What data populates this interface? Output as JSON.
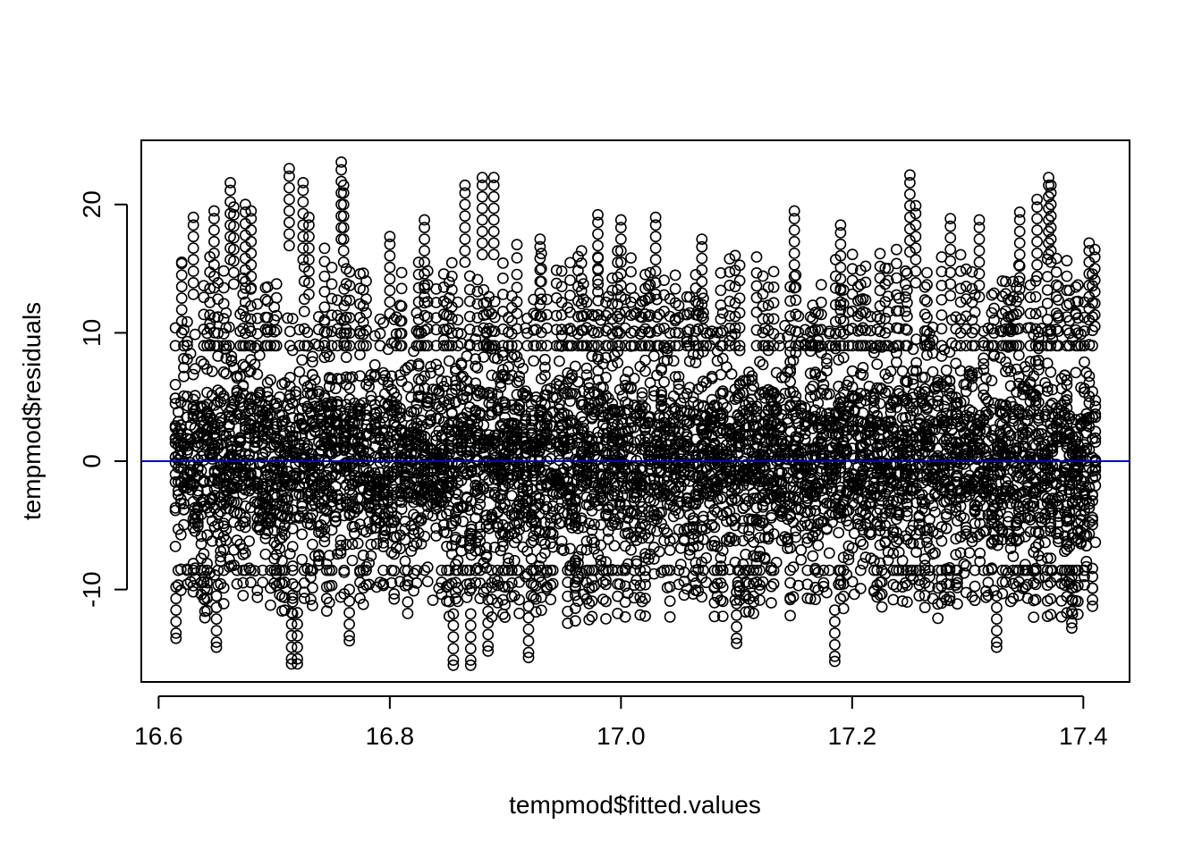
{
  "chart_data": {
    "type": "scatter",
    "title": "",
    "xlabel": "tempmod$fitted.values",
    "ylabel": "tempmod$residuals",
    "xlim": [
      16.585,
      17.44
    ],
    "ylim": [
      -17.2,
      25.0
    ],
    "x_ticks": [
      16.6,
      16.8,
      17.0,
      17.2,
      17.4
    ],
    "x_tick_labels": [
      "16.6",
      "16.8",
      "17.0",
      "17.2",
      "17.4"
    ],
    "y_ticks": [
      -10,
      0,
      10,
      20
    ],
    "y_tick_labels": [
      "-10",
      "0",
      "10",
      "20"
    ],
    "x_range": [
      16.615,
      17.41
    ],
    "residual_core_range": [
      -10,
      10
    ],
    "residual_extremes": [
      -15.9,
      23.3
    ],
    "marker": "open-circle",
    "reference_line": {
      "y": 0,
      "color": "#0000cc"
    },
    "series": [
      {
        "points": [
          [
            16.615,
            -13.8
          ],
          [
            16.62,
            15.5
          ],
          [
            16.63,
            19.0
          ],
          [
            16.64,
            -12.2
          ],
          [
            16.648,
            19.5
          ],
          [
            16.65,
            -14.5
          ],
          [
            16.662,
            21.7
          ],
          [
            16.665,
            19.8
          ],
          [
            16.675,
            20.0
          ],
          [
            16.68,
            19.5
          ],
          [
            16.713,
            22.8
          ],
          [
            16.715,
            -15.8
          ],
          [
            16.72,
            -15.8
          ],
          [
            16.725,
            21.7
          ],
          [
            16.73,
            19.0
          ],
          [
            16.758,
            23.3
          ],
          [
            16.76,
            21.5
          ],
          [
            16.765,
            -14.0
          ],
          [
            16.8,
            17.5
          ],
          [
            16.83,
            18.8
          ],
          [
            16.855,
            -15.9
          ],
          [
            16.865,
            21.5
          ],
          [
            16.87,
            -15.9
          ],
          [
            16.88,
            22.1
          ],
          [
            16.885,
            -14.8
          ],
          [
            16.89,
            22.1
          ],
          [
            16.92,
            -15.3
          ],
          [
            16.93,
            17.3
          ],
          [
            16.98,
            19.2
          ],
          [
            17.0,
            18.8
          ],
          [
            17.03,
            19.0
          ],
          [
            17.07,
            17.3
          ],
          [
            17.1,
            -14.2
          ],
          [
            17.15,
            19.5
          ],
          [
            17.185,
            -15.6
          ],
          [
            17.19,
            18.4
          ],
          [
            17.25,
            22.3
          ],
          [
            17.255,
            19.9
          ],
          [
            17.285,
            18.9
          ],
          [
            17.31,
            18.8
          ],
          [
            17.325,
            -14.5
          ],
          [
            17.345,
            19.4
          ],
          [
            17.36,
            20.4
          ],
          [
            17.37,
            22.1
          ],
          [
            17.372,
            21.5
          ],
          [
            17.39,
            -13.0
          ],
          [
            17.405,
            17.0
          ],
          [
            17.41,
            16.5
          ],
          [
            17.408,
            -11.3
          ]
        ]
      }
    ]
  }
}
